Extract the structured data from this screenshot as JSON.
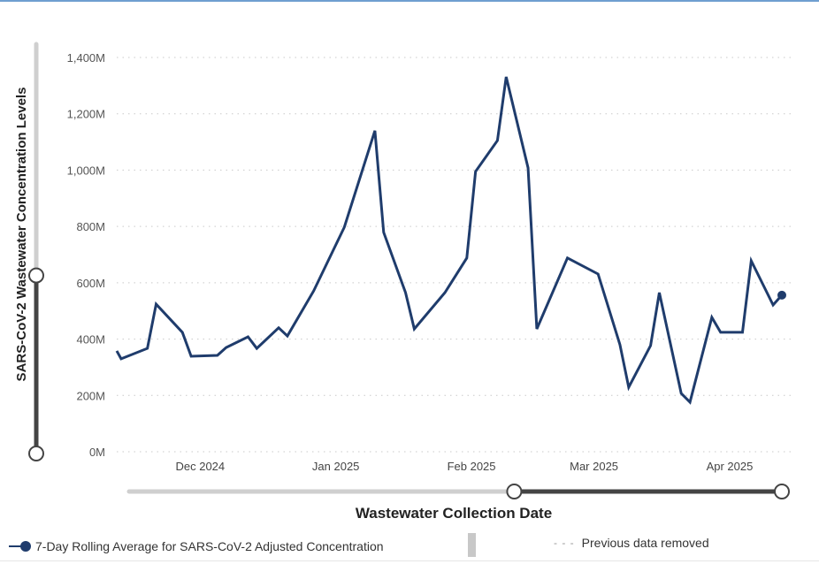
{
  "chart_data": {
    "type": "line",
    "title": "",
    "xlabel": "Wastewater Collection Date",
    "ylabel": "SARS-CoV-2 Wastewater Concentration Levels",
    "ylim": [
      0,
      1400
    ],
    "y_unit": "M",
    "y_ticks": [
      "0M",
      "200M",
      "400M",
      "600M",
      "800M",
      "1,000M",
      "1,200M",
      "1,400M"
    ],
    "x_ticks": [
      "Dec 2024",
      "Jan 2025",
      "Feb 2025",
      "Mar 2025",
      "Apr 2025"
    ],
    "grid": true,
    "legend_position": "bottom-left",
    "series": [
      {
        "name": "7-Day Rolling Average for SARS-CoV-2 Adjusted Concentration",
        "color": "#1f3c6c",
        "x": [
          "2024-11-18",
          "2024-11-19",
          "2024-11-25",
          "2024-11-27",
          "2024-12-03",
          "2024-12-05",
          "2024-12-11",
          "2024-12-13",
          "2024-12-18",
          "2024-12-20",
          "2024-12-25",
          "2024-12-27",
          "2025-01-02",
          "2025-01-09",
          "2025-01-16",
          "2025-01-18",
          "2025-01-23",
          "2025-01-25",
          "2025-02-01",
          "2025-02-06",
          "2025-02-08",
          "2025-02-13",
          "2025-02-15",
          "2025-02-20",
          "2025-02-22",
          "2025-03-01",
          "2025-03-08",
          "2025-03-13",
          "2025-03-15",
          "2025-03-20",
          "2025-03-22",
          "2025-03-27",
          "2025-03-29",
          "2025-04-03",
          "2025-04-05",
          "2025-04-10",
          "2025-04-12",
          "2025-04-17",
          "2025-04-19"
        ],
        "values": [
          358,
          330,
          367,
          524,
          424,
          339,
          342,
          370,
          408,
          367,
          440,
          411,
          571,
          797,
          1140,
          779,
          565,
          436,
          565,
          688,
          995,
          1105,
          1331,
          1008,
          436,
          688,
          631,
          380,
          229,
          377,
          565,
          207,
          176,
          477,
          424,
          424,
          678,
          521,
          556
        ]
      }
    ],
    "y_range_slider": {
      "selected_fraction": [
        0.0,
        0.435
      ]
    },
    "x_range_slider": {
      "selected_fraction": [
        0.59,
        1.0
      ]
    }
  },
  "legend": {
    "series_label": "7-Day Rolling Average for SARS-CoV-2 Adjusted Concentration",
    "note_marker": "- - -",
    "note_label": "Previous data removed"
  }
}
